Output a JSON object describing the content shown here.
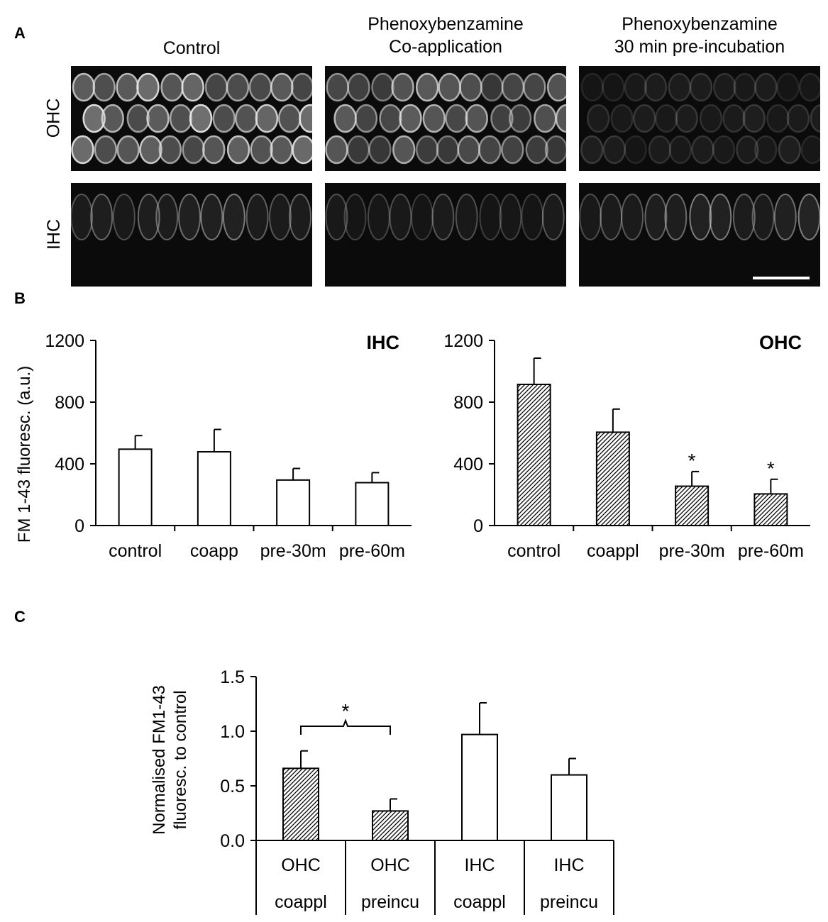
{
  "panel_labels": {
    "a": "A",
    "b": "B",
    "c": "C"
  },
  "panel_a": {
    "columns": [
      "Control",
      "Phenoxybenzamine\nCo-application",
      "Phenoxybenzamine\n30 min pre-incubation"
    ],
    "rows": [
      "OHC",
      "IHC"
    ]
  },
  "colors": {
    "axis": "#000000",
    "bar_open": "#ffffff",
    "hatch": "#000000",
    "micrograph_bg": "#0b0b0b",
    "cell": "#bdbdbd"
  },
  "chart_data": [
    {
      "type": "bar",
      "panel": "B",
      "title": "IHC",
      "ylabel": "FM 1-43  fluoresc. (a.u.)",
      "categories": [
        "control",
        "coapp",
        "pre-30m",
        "pre-60m"
      ],
      "values": [
        495,
        478,
        295,
        278
      ],
      "errors": [
        88,
        145,
        75,
        65
      ],
      "ylim": [
        0,
        1200
      ],
      "yticks": [
        0,
        400,
        800,
        1200
      ],
      "fill": "open",
      "significance": [
        "",
        "",
        "",
        ""
      ]
    },
    {
      "type": "bar",
      "panel": "B",
      "title": "OHC",
      "ylabel": "",
      "categories": [
        "control",
        "coappl",
        "pre-30m",
        "pre-60m"
      ],
      "values": [
        915,
        605,
        255,
        205
      ],
      "errors": [
        170,
        150,
        95,
        95
      ],
      "ylim": [
        0,
        1200
      ],
      "yticks": [
        0,
        400,
        800,
        1200
      ],
      "fill": "hatched",
      "significance": [
        "",
        "",
        "*",
        "*"
      ]
    },
    {
      "type": "bar",
      "panel": "C",
      "title": "",
      "ylabel": "Normalised FM1-43\nfluoresc. to control",
      "categories": [
        [
          "OHC",
          "coappl"
        ],
        [
          "OHC",
          "preincu"
        ],
        [
          "IHC",
          "coappl"
        ],
        [
          "IHC",
          "preincu"
        ]
      ],
      "values": [
        0.66,
        0.27,
        0.97,
        0.6
      ],
      "errors": [
        0.16,
        0.11,
        0.29,
        0.15
      ],
      "fills": [
        "hatched",
        "hatched",
        "open",
        "open"
      ],
      "ylim": [
        0,
        1.5
      ],
      "yticks": [
        "0.0",
        "0.5",
        "1.0",
        "1.5"
      ],
      "significance_bracket": {
        "between": [
          0,
          1
        ],
        "label": "*"
      }
    }
  ]
}
